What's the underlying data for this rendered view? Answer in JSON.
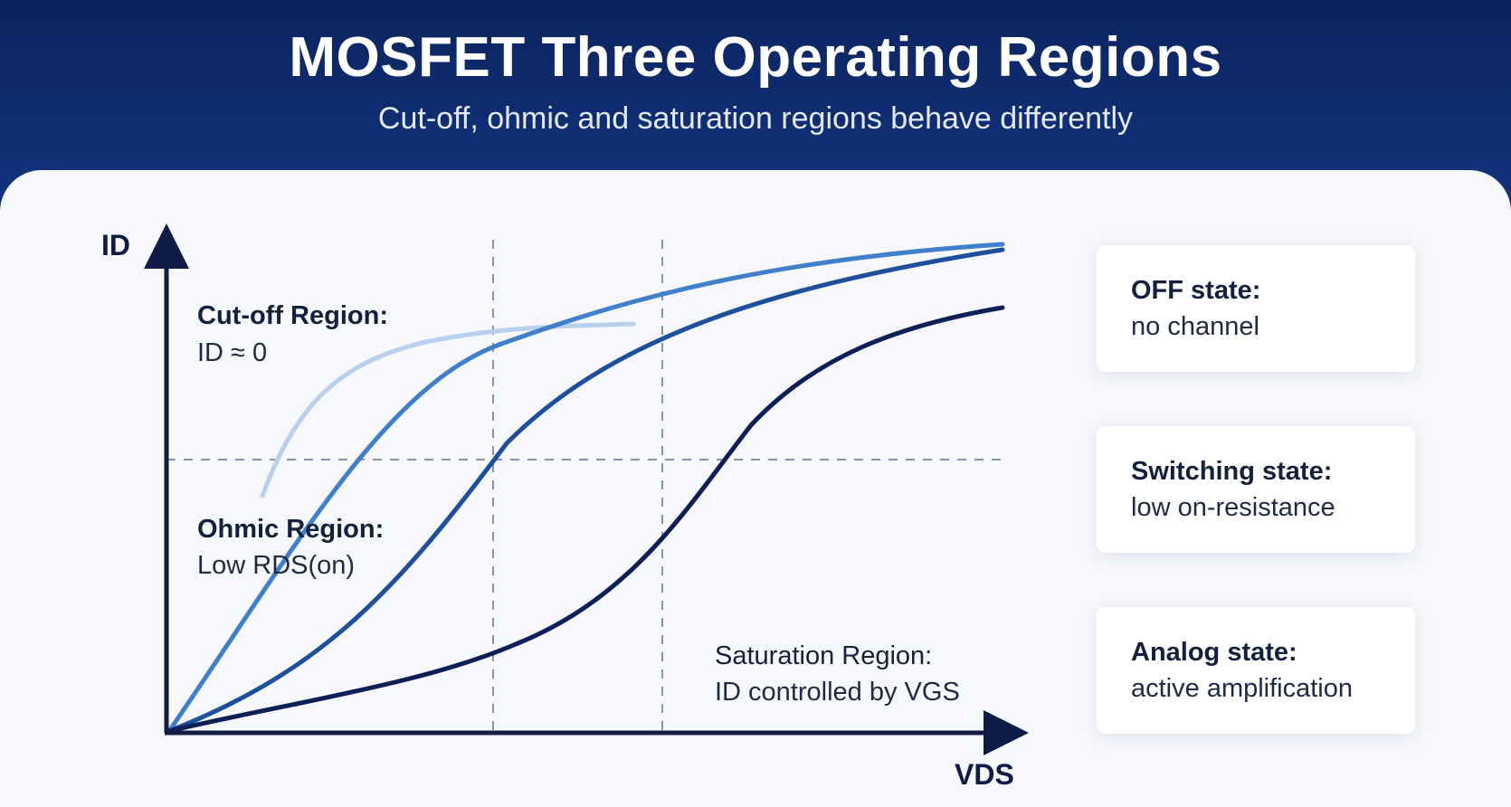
{
  "header": {
    "title": "MOSFET Three Operating Regions",
    "subtitle": "Cut-off, ohmic and saturation regions behave differently"
  },
  "diagram": {
    "y_axis_label": "ID",
    "x_axis_label": "VDS",
    "regions": [
      {
        "title": "Cut-off Region:",
        "desc": "ID ≈ 0"
      },
      {
        "title": "Ohmic Region:",
        "desc": "Low RDS(on)"
      },
      {
        "title": "Saturation Region:",
        "desc": "ID controlled by VGS"
      }
    ],
    "colors": {
      "axis": "#0e1c47",
      "curve_lightest": "#b8d0ee",
      "curve_light": "#3f7fcc",
      "curve_mid": "#1e4f9c",
      "curve_dark": "#0e1f57",
      "guide": "#8a93a8"
    }
  },
  "states": [
    {
      "title": "OFF state:",
      "desc": "no channel"
    },
    {
      "title": "Switching state:",
      "desc": "low on-resistance"
    },
    {
      "title": "Analog state:",
      "desc": "active amplification"
    }
  ]
}
